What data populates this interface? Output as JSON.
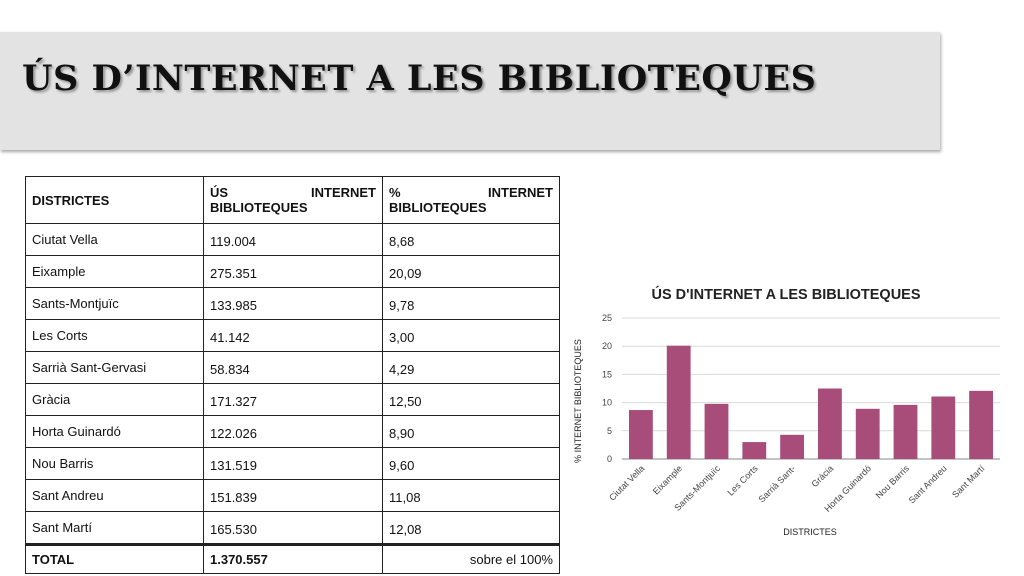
{
  "title": "ÚS D’INTERNET A LES BIBLIOTEQUES",
  "table": {
    "headers": {
      "col1": "DISTRICTES",
      "col2_line1_left": "ÚS",
      "col2_line1_right": "INTERNET",
      "col2_line2": "BIBLIOTEQUES",
      "col3_line1_left": "%",
      "col3_line1_right": "INTERNET",
      "col3_line2": "BIBLIOTEQUES"
    },
    "rows": [
      {
        "district": "Ciutat Vella",
        "uses": "119.004",
        "pct": "8,68"
      },
      {
        "district": "Eixample",
        "uses": "275.351",
        "pct": "20,09"
      },
      {
        "district": "Sants-Montjuïc",
        "uses": "133.985",
        "pct": "9,78"
      },
      {
        "district": "Les Corts",
        "uses": "41.142",
        "pct": "3,00"
      },
      {
        "district": "Sarrià Sant-Gervasi",
        "uses": "58.834",
        "pct": "4,29"
      },
      {
        "district": "Gràcia",
        "uses": "171.327",
        "pct": "12,50"
      },
      {
        "district": "Horta Guinardó",
        "uses": "122.026",
        "pct": "8,90"
      },
      {
        "district": "Nou Barris",
        "uses": "131.519",
        "pct": "9,60"
      },
      {
        "district": "Sant Andreu",
        "uses": "151.839",
        "pct": "11,08"
      },
      {
        "district": "Sant Martí",
        "uses": "165.530",
        "pct": "12,08"
      }
    ],
    "total": {
      "label": "TOTAL",
      "uses": "1.370.557",
      "note": "sobre el 100%"
    }
  },
  "chart_data": {
    "type": "bar",
    "title": "ÚS D'INTERNET A LES BIBLIOTEQUES",
    "xlabel": "DISTRICTES",
    "ylabel": "% INTERNET BIBLIOTEQUES",
    "categories": [
      "Ciutat Vella",
      "Eixample",
      "Sants-Montjuïc",
      "Les Corts",
      "Sarrià Sant-",
      "Gràcia",
      "Horta Guinardó",
      "Nou Barris",
      "Sant Andreu",
      "Sant Martí"
    ],
    "values": [
      8.68,
      20.09,
      9.78,
      3.0,
      4.29,
      12.5,
      8.9,
      9.6,
      11.08,
      12.08
    ],
    "ylim": [
      0,
      25
    ],
    "yticks": [
      0,
      5,
      10,
      15,
      20,
      25
    ],
    "grid": true,
    "bar_color": "#a84d7a",
    "grid_color": "#d9d9d9"
  }
}
